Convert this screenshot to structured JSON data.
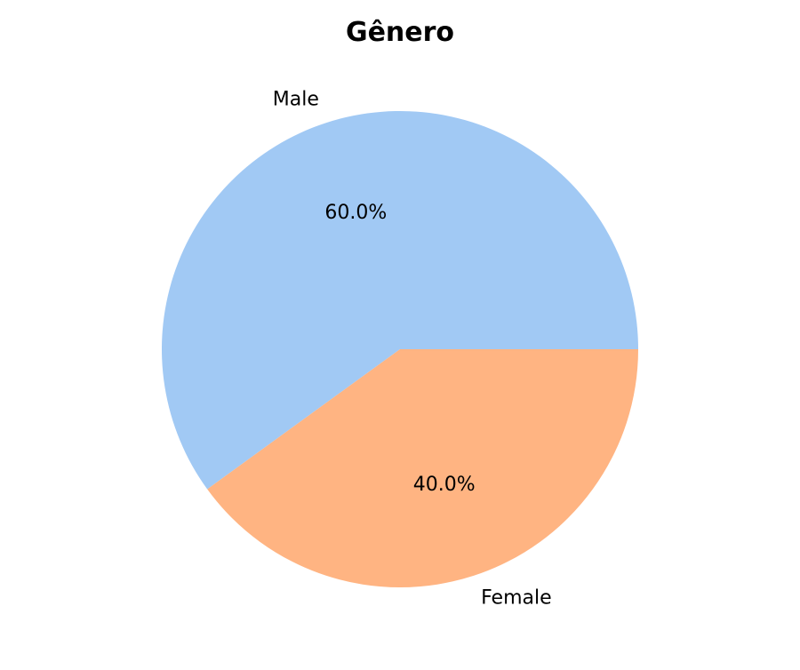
{
  "chart_data": {
    "type": "pie",
    "title": "Gênero",
    "categories": [
      "Male",
      "Female"
    ],
    "values": [
      60.0,
      40.0
    ],
    "percent_labels": [
      "60.0%",
      "40.0%"
    ],
    "colors": [
      "#a1c9f4",
      "#ffb482"
    ],
    "start_angle_deg": 0,
    "direction": "counterclockwise",
    "legend": "none"
  }
}
